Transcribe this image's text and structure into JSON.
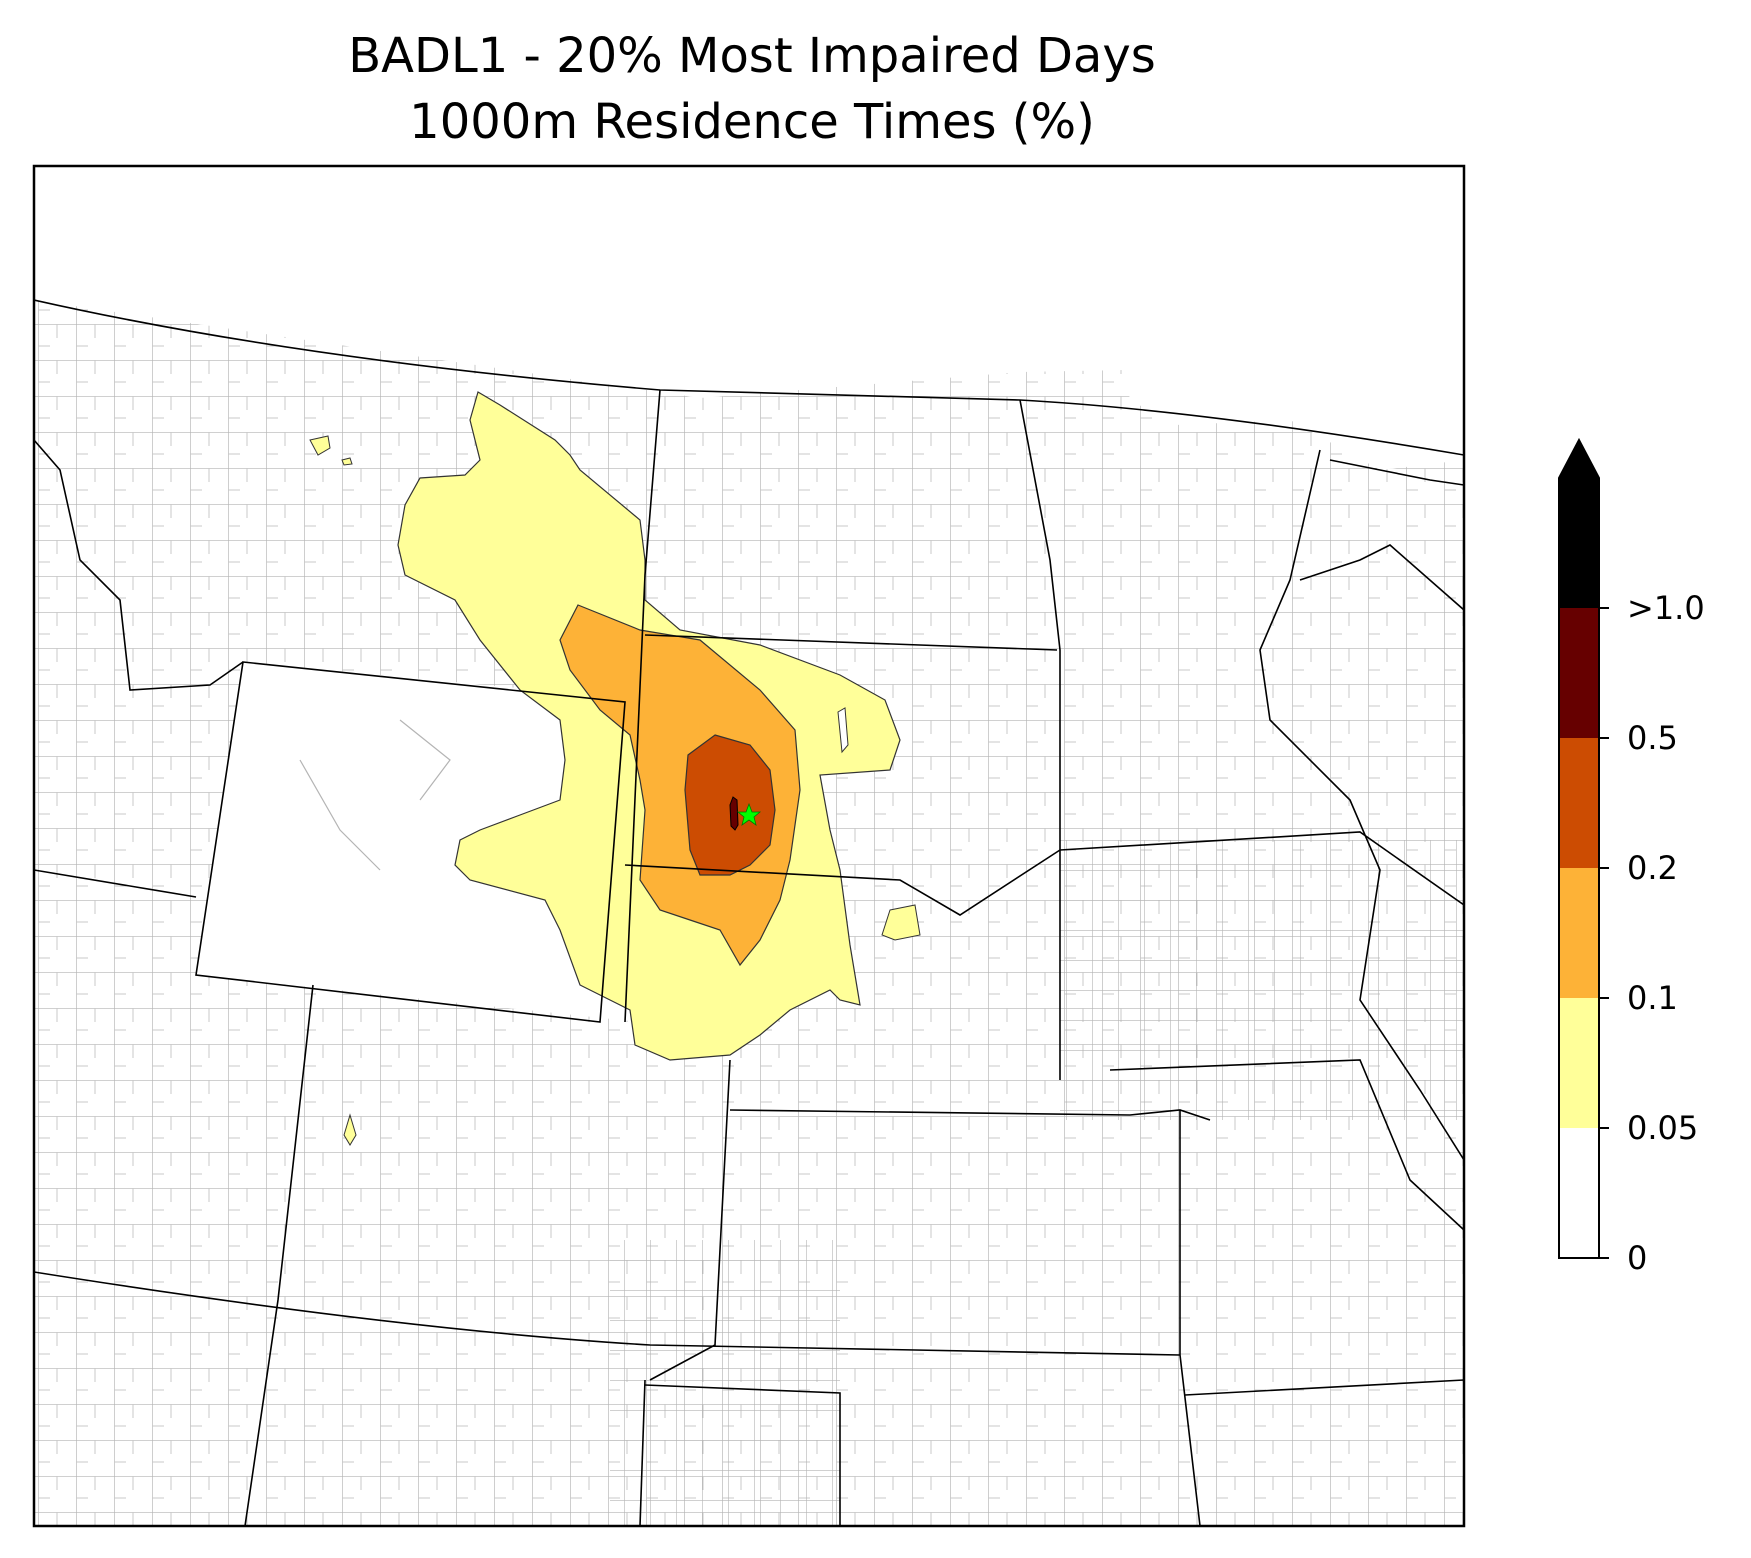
{
  "title": {
    "line1": "BADL1 - 20% Most Impaired Days",
    "line2": "1000m Residence Times (%)"
  },
  "site": {
    "marker": "star-icon",
    "color": "#00ff00"
  },
  "colorbar": {
    "levels": [
      {
        "label": "0",
        "color": "#ffffff"
      },
      {
        "label": "0.05",
        "color": "#ffff99"
      },
      {
        "label": "0.1",
        "color": "#fdb237"
      },
      {
        "label": "0.2",
        "color": "#cc4c02"
      },
      {
        "label": "0.5",
        "color": "#660000"
      },
      {
        "label": ">1.0",
        "color": "#000000"
      }
    ],
    "extend": "max"
  }
}
